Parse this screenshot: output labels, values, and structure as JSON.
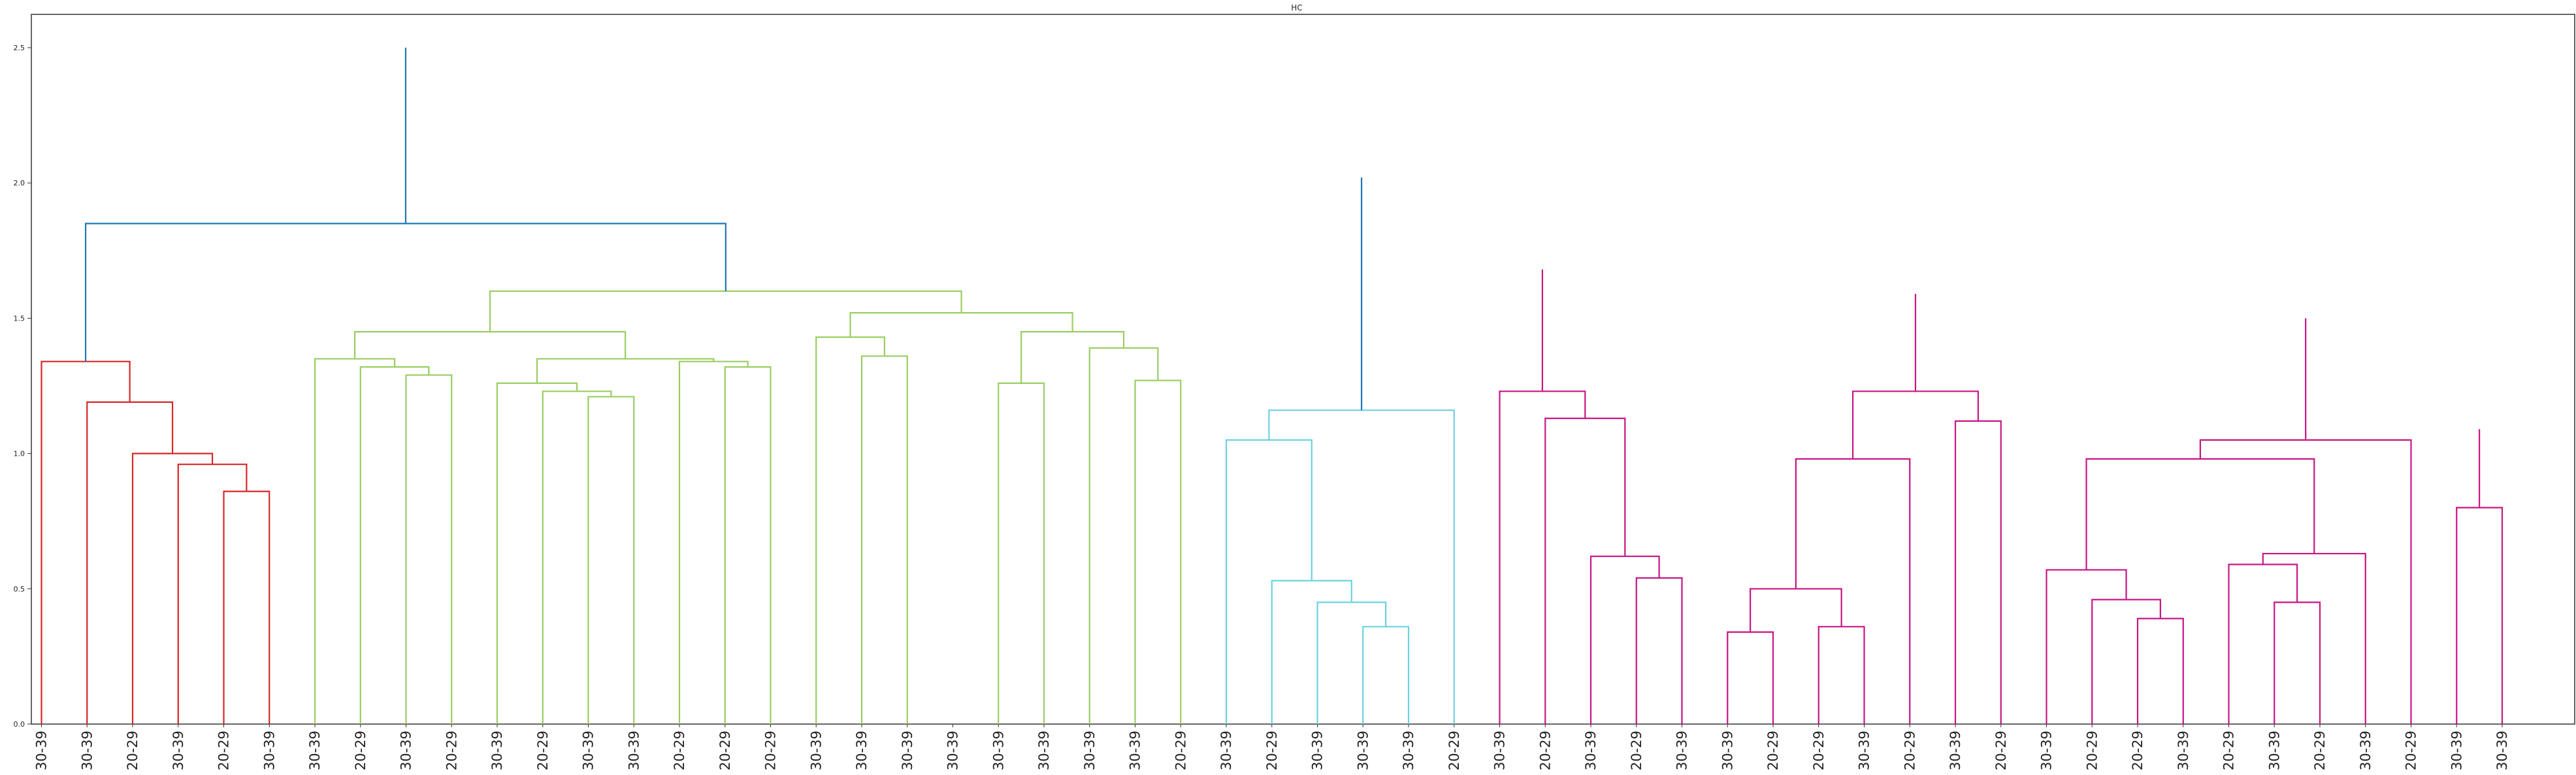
{
  "chart_data": {
    "type": "dendrogram",
    "title": "HC",
    "xlabel": "",
    "ylabel": "",
    "ylim": [
      0,
      2.5
    ],
    "yticks": [
      0.0,
      0.5,
      1.0,
      1.5,
      2.0,
      2.5
    ],
    "ytick_labels": [
      "0.0",
      "0.5",
      "1.0",
      "1.5",
      "2.0",
      "2.5"
    ],
    "grid": false,
    "leaves": [
      "30-39",
      "30-39",
      "20-29",
      "30-39",
      "20-29",
      "30-39",
      "30-39",
      "20-29",
      "30-39",
      "20-29",
      "30-39",
      "20-29",
      "30-39",
      "30-39",
      "20-29",
      "20-29",
      "20-29",
      "30-39",
      "30-39",
      "30-39",
      "30-39",
      "30-39",
      "30-39",
      "30-39",
      "30-39",
      "20-29",
      "30-39",
      "20-29",
      "30-39",
      "30-39",
      "30-39",
      "20-29",
      "30-39",
      "20-29",
      "30-39",
      "20-29",
      "30-39",
      "30-39",
      "20-29",
      "20-29",
      "30-39",
      "20-29",
      "30-39",
      "20-29",
      "30-39",
      "20-29",
      "20-29",
      "30-39",
      "20-29",
      "30-39",
      "20-29",
      "30-39",
      "20-29",
      "30-39",
      "30-39"
    ],
    "clusters": [
      {
        "color": "#9acd61",
        "leaves": [
          0,
          5
        ]
      },
      {
        "color": "#d62728",
        "leaves": [
          6,
          25
        ]
      },
      {
        "color": "#6cd2e0",
        "leaves": [
          26,
          31
        ]
      },
      {
        "color": "#c71585",
        "leaves": [
          32,
          54
        ]
      }
    ],
    "link_color_above_threshold": "#1f77b4",
    "merges": [
      [
        5,
        4,
        0.86,
        2
      ],
      [
        3,
        55,
        0.96,
        2
      ],
      [
        2,
        56,
        1.0,
        2
      ],
      [
        1,
        57,
        1.19,
        2
      ],
      [
        0,
        58,
        1.34,
        2
      ],
      [
        8,
        9,
        1.29,
        1
      ],
      [
        7,
        60,
        1.32,
        1
      ],
      [
        6,
        61,
        1.35,
        1
      ],
      [
        12,
        13,
        1.21,
        1
      ],
      [
        11,
        63,
        1.23,
        1
      ],
      [
        10,
        64,
        1.26,
        1
      ],
      [
        15,
        16,
        1.32,
        1
      ],
      [
        14,
        66,
        1.34,
        1
      ],
      [
        65,
        67,
        1.35,
        1
      ],
      [
        62,
        68,
        1.45,
        1
      ],
      [
        18,
        19,
        1.36,
        1
      ],
      [
        17,
        70,
        1.43,
        1
      ],
      [
        21,
        22,
        1.26,
        1
      ],
      [
        24,
        25,
        1.27,
        1
      ],
      [
        23,
        73,
        1.39,
        1
      ],
      [
        72,
        74,
        1.45,
        1
      ],
      [
        71,
        75,
        1.52,
        1
      ],
      [
        69,
        76,
        1.6,
        1
      ],
      [
        59,
        77,
        1.85,
        0
      ],
      [
        29,
        30,
        0.36,
        3
      ],
      [
        28,
        79,
        0.45,
        3
      ],
      [
        27,
        80,
        0.53,
        3
      ],
      [
        26,
        81,
        1.05,
        3
      ],
      [
        82,
        31,
        1.16,
        3
      ],
      [
        35,
        36,
        0.54,
        4
      ],
      [
        34,
        84,
        0.62,
        4
      ],
      [
        33,
        85,
        1.13,
        4
      ],
      [
        32,
        86,
        1.23,
        4
      ],
      [
        37,
        38,
        0.34,
        4
      ],
      [
        39,
        40,
        0.36,
        4
      ],
      [
        88,
        89,
        0.5,
        4
      ],
      [
        41,
        90,
        0.98,
        4
      ],
      [
        42,
        43,
        1.12,
        4
      ],
      [
        91,
        92,
        1.23,
        4
      ],
      [
        46,
        47,
        0.39,
        4
      ],
      [
        45,
        94,
        0.46,
        4
      ],
      [
        44,
        95,
        0.57,
        4
      ],
      [
        49,
        50,
        0.45,
        4
      ],
      [
        48,
        97,
        0.59,
        4
      ],
      [
        98,
        51,
        0.63,
        4
      ],
      [
        96,
        99,
        0.98,
        4
      ],
      [
        100,
        52,
        1.05,
        4
      ],
      [
        53,
        54,
        0.8,
        4
      ],
      [
        102,
        103,
        1.09,
        4
      ],
      [
        101,
        104,
        1.5,
        4
      ],
      [
        93,
        105,
        1.59,
        4
      ],
      [
        87,
        106,
        1.68,
        4
      ],
      [
        83,
        107,
        2.02,
        0
      ],
      [
        78,
        108,
        2.5,
        0
      ]
    ]
  }
}
